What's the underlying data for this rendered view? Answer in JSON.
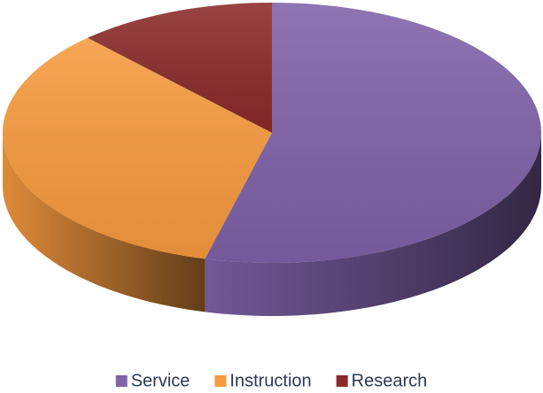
{
  "chart_data": {
    "type": "pie",
    "categories": [
      "Service",
      "Instruction",
      "Research"
    ],
    "values": [
      54,
      34,
      12
    ],
    "colors": [
      "#7f62a8",
      "#f79a3e",
      "#8b2a2a"
    ],
    "legend": "bottom"
  }
}
